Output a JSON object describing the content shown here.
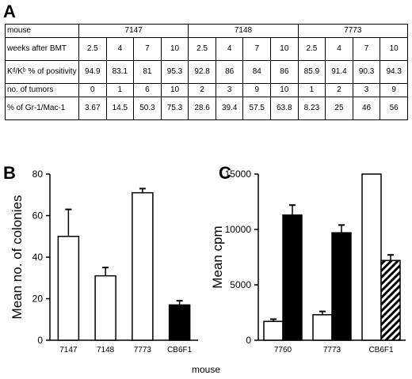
{
  "panels": {
    "a": "A",
    "b": "B",
    "c": "C"
  },
  "table": {
    "row_header": "mouse",
    "groups": [
      "7147",
      "7148",
      "7773"
    ],
    "rows": [
      {
        "label": "weeks after BMT",
        "values": [
          "2.5",
          "4",
          "7",
          "10",
          "2.5",
          "4",
          "7",
          "10",
          "2.5",
          "4",
          "7",
          "10"
        ]
      },
      {
        "label": "Kᵈ/Kᵇ % of positivity",
        "values": [
          "94.9",
          "83.1",
          "81",
          "95.3",
          "92.8",
          "86",
          "84",
          "86",
          "85.9",
          "91.4",
          "90.3",
          "94.3"
        ]
      },
      {
        "label": "no. of tumors",
        "values": [
          "0",
          "1",
          "6",
          "10",
          "2",
          "3",
          "9",
          "10",
          "1",
          "2",
          "3",
          "9"
        ]
      },
      {
        "label": "% of Gr-1/Mac-1",
        "values": [
          "3.67",
          "14.5",
          "50.3",
          "75.3",
          "28.6",
          "39.4",
          "57.5",
          "63.8",
          "8.23",
          "25",
          "46",
          "56"
        ]
      }
    ]
  },
  "xlabel_shared": "mouse",
  "chart_data": [
    {
      "type": "bar",
      "ylabel": "Mean no. of colonies",
      "xlabel": "",
      "ylim": [
        0,
        80
      ],
      "yticks": [
        0,
        20,
        40,
        60,
        80
      ],
      "categories": [
        "7147",
        "7148",
        "7773",
        "CB6F1"
      ],
      "values": [
        50,
        31,
        71,
        17
      ],
      "errors": [
        13,
        4,
        2,
        2
      ],
      "fills": [
        "white",
        "white",
        "white",
        "black"
      ]
    },
    {
      "type": "bar",
      "ylabel": "Mean cpm",
      "xlabel": "",
      "ylim": [
        0,
        15000
      ],
      "yticks": [
        0,
        5000,
        10000,
        15000
      ],
      "categories": [
        "7760",
        "7773",
        "CB6F1"
      ],
      "series": [
        {
          "values": [
            1700,
            2300,
            15000
          ],
          "errors": [
            200,
            300,
            null
          ],
          "fill": "white"
        },
        {
          "values": [
            11300,
            9700,
            7200
          ],
          "errors": [
            900,
            700,
            500
          ],
          "fills": [
            "black",
            "black",
            "hatched"
          ]
        }
      ]
    }
  ]
}
